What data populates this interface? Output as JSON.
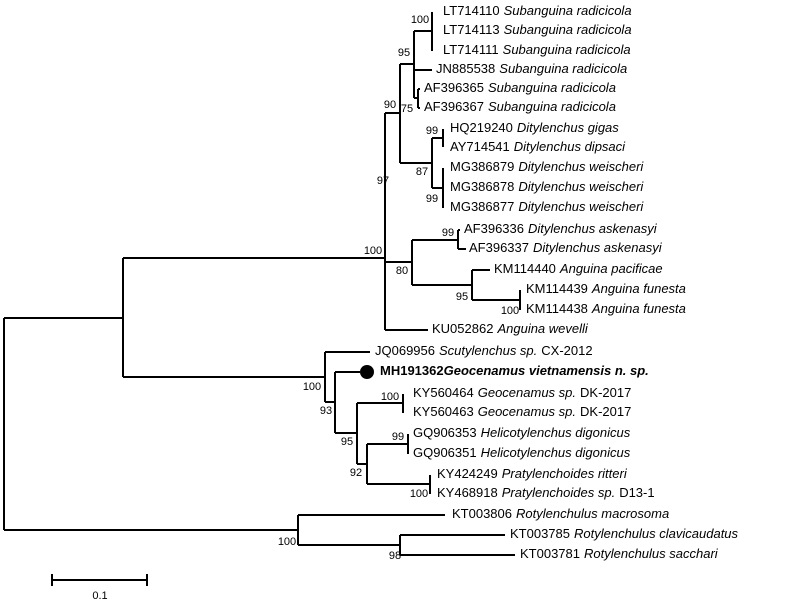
{
  "leaves": [
    {
      "accession": "LT714110",
      "species": "Subanguina radicicola"
    },
    {
      "accession": "LT714113",
      "species": "Subanguina radicicola"
    },
    {
      "accession": "LT714111",
      "species": "Subanguina radicicola"
    },
    {
      "accession": "JN885538",
      "species": "Subanguina radicicola"
    },
    {
      "accession": "AF396365",
      "species": "Subanguina radicicola"
    },
    {
      "accession": "AF396367",
      "species": "Subanguina radicicola"
    },
    {
      "accession": "HQ219240",
      "species": "Ditylenchus gigas"
    },
    {
      "accession": "AY714541",
      "species": "Ditylenchus dipsaci"
    },
    {
      "accession": "MG386879",
      "species": "Ditylenchus weischeri"
    },
    {
      "accession": "MG386878",
      "species": "Ditylenchus weischeri"
    },
    {
      "accession": "MG386877",
      "species": "Ditylenchus weischeri"
    },
    {
      "accession": "AF396336",
      "species": "Ditylenchus askenasyi"
    },
    {
      "accession": "AF396337",
      "species": "Ditylenchus askenasyi"
    },
    {
      "accession": "KM114440",
      "species": "Anguina pacificae"
    },
    {
      "accession": "KM114439",
      "species": "Anguina funesta"
    },
    {
      "accession": "KM114438",
      "species": "Anguina funesta"
    },
    {
      "accession": "KU052862",
      "species": "Anguina wevelli"
    },
    {
      "accession": "JQ069956",
      "species": "Scutylenchus sp.",
      "strain": "CX-2012"
    },
    {
      "accession": "MH191362",
      "species": "Geocenamus vietnamensis n. sp."
    },
    {
      "accession": "KY560464",
      "species": "Geocenamus sp.",
      "strain": "DK-2017"
    },
    {
      "accession": "KY560463",
      "species": "Geocenamus sp.",
      "strain": "DK-2017"
    },
    {
      "accession": "GQ906353",
      "species": "Helicotylenchus digonicus"
    },
    {
      "accession": "GQ906351",
      "species": "Helicotylenchus digonicus"
    },
    {
      "accession": "KY424249",
      "species": "Pratylenchoides ritteri"
    },
    {
      "accession": "KY468918",
      "species": "Pratylenchoides sp.",
      "strain": "D13-1"
    },
    {
      "accession": "KT003806",
      "species": "Rotylenchulus macrosoma"
    },
    {
      "accession": "KT003785",
      "species": "Rotylenchulus clavicaudatus"
    },
    {
      "accession": "KT003781",
      "species": "Rotylenchulus sacchari"
    }
  ],
  "bootstrap": [
    "100",
    "95",
    "90",
    "75",
    "99",
    "87",
    "99",
    "97",
    "100",
    "99",
    "80",
    "95",
    "100",
    "100",
    "93",
    "95",
    "100",
    "99",
    "92",
    "100",
    "100",
    "98"
  ],
  "scale_bar": "0.1"
}
